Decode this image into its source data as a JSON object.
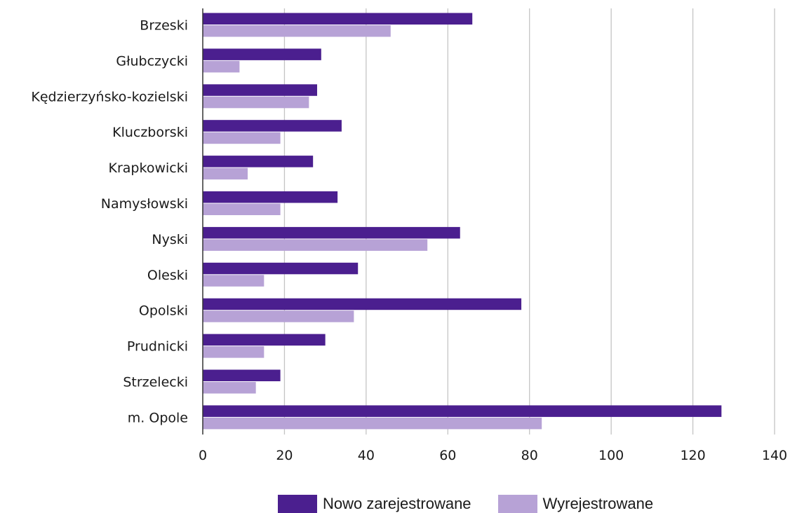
{
  "chart_data": {
    "type": "bar",
    "orientation": "horizontal",
    "categories": [
      "Brzeski",
      "Głubczycki",
      "Kędzierzyńsko-kozielski",
      "Kluczborski",
      "Krapkowicki",
      "Namysłowski",
      "Nyski",
      "Oleski",
      "Opolski",
      "Prudnicki",
      "Strzelecki",
      "m. Opole"
    ],
    "series": [
      {
        "name": "Nowo zarejestrowane",
        "color": "#4b1f8f",
        "values": [
          66,
          29,
          28,
          34,
          27,
          33,
          63,
          38,
          78,
          30,
          19,
          127
        ]
      },
      {
        "name": "Wyrejestrowane",
        "color": "#b7a2d6",
        "values": [
          46,
          9,
          26,
          19,
          11,
          19,
          55,
          15,
          37,
          15,
          13,
          83
        ]
      }
    ],
    "xlim": [
      0,
      140
    ],
    "xticks": [
      "0",
      "20",
      "40",
      "60",
      "80",
      "100",
      "120",
      "140"
    ],
    "grid": "vertical",
    "legend": "bottom-center"
  },
  "legend": {
    "items": [
      {
        "label": "Nowo zarejestrowane",
        "color": "#4b1f8f"
      },
      {
        "label": "Wyrejestrowane",
        "color": "#b7a2d6"
      }
    ]
  }
}
